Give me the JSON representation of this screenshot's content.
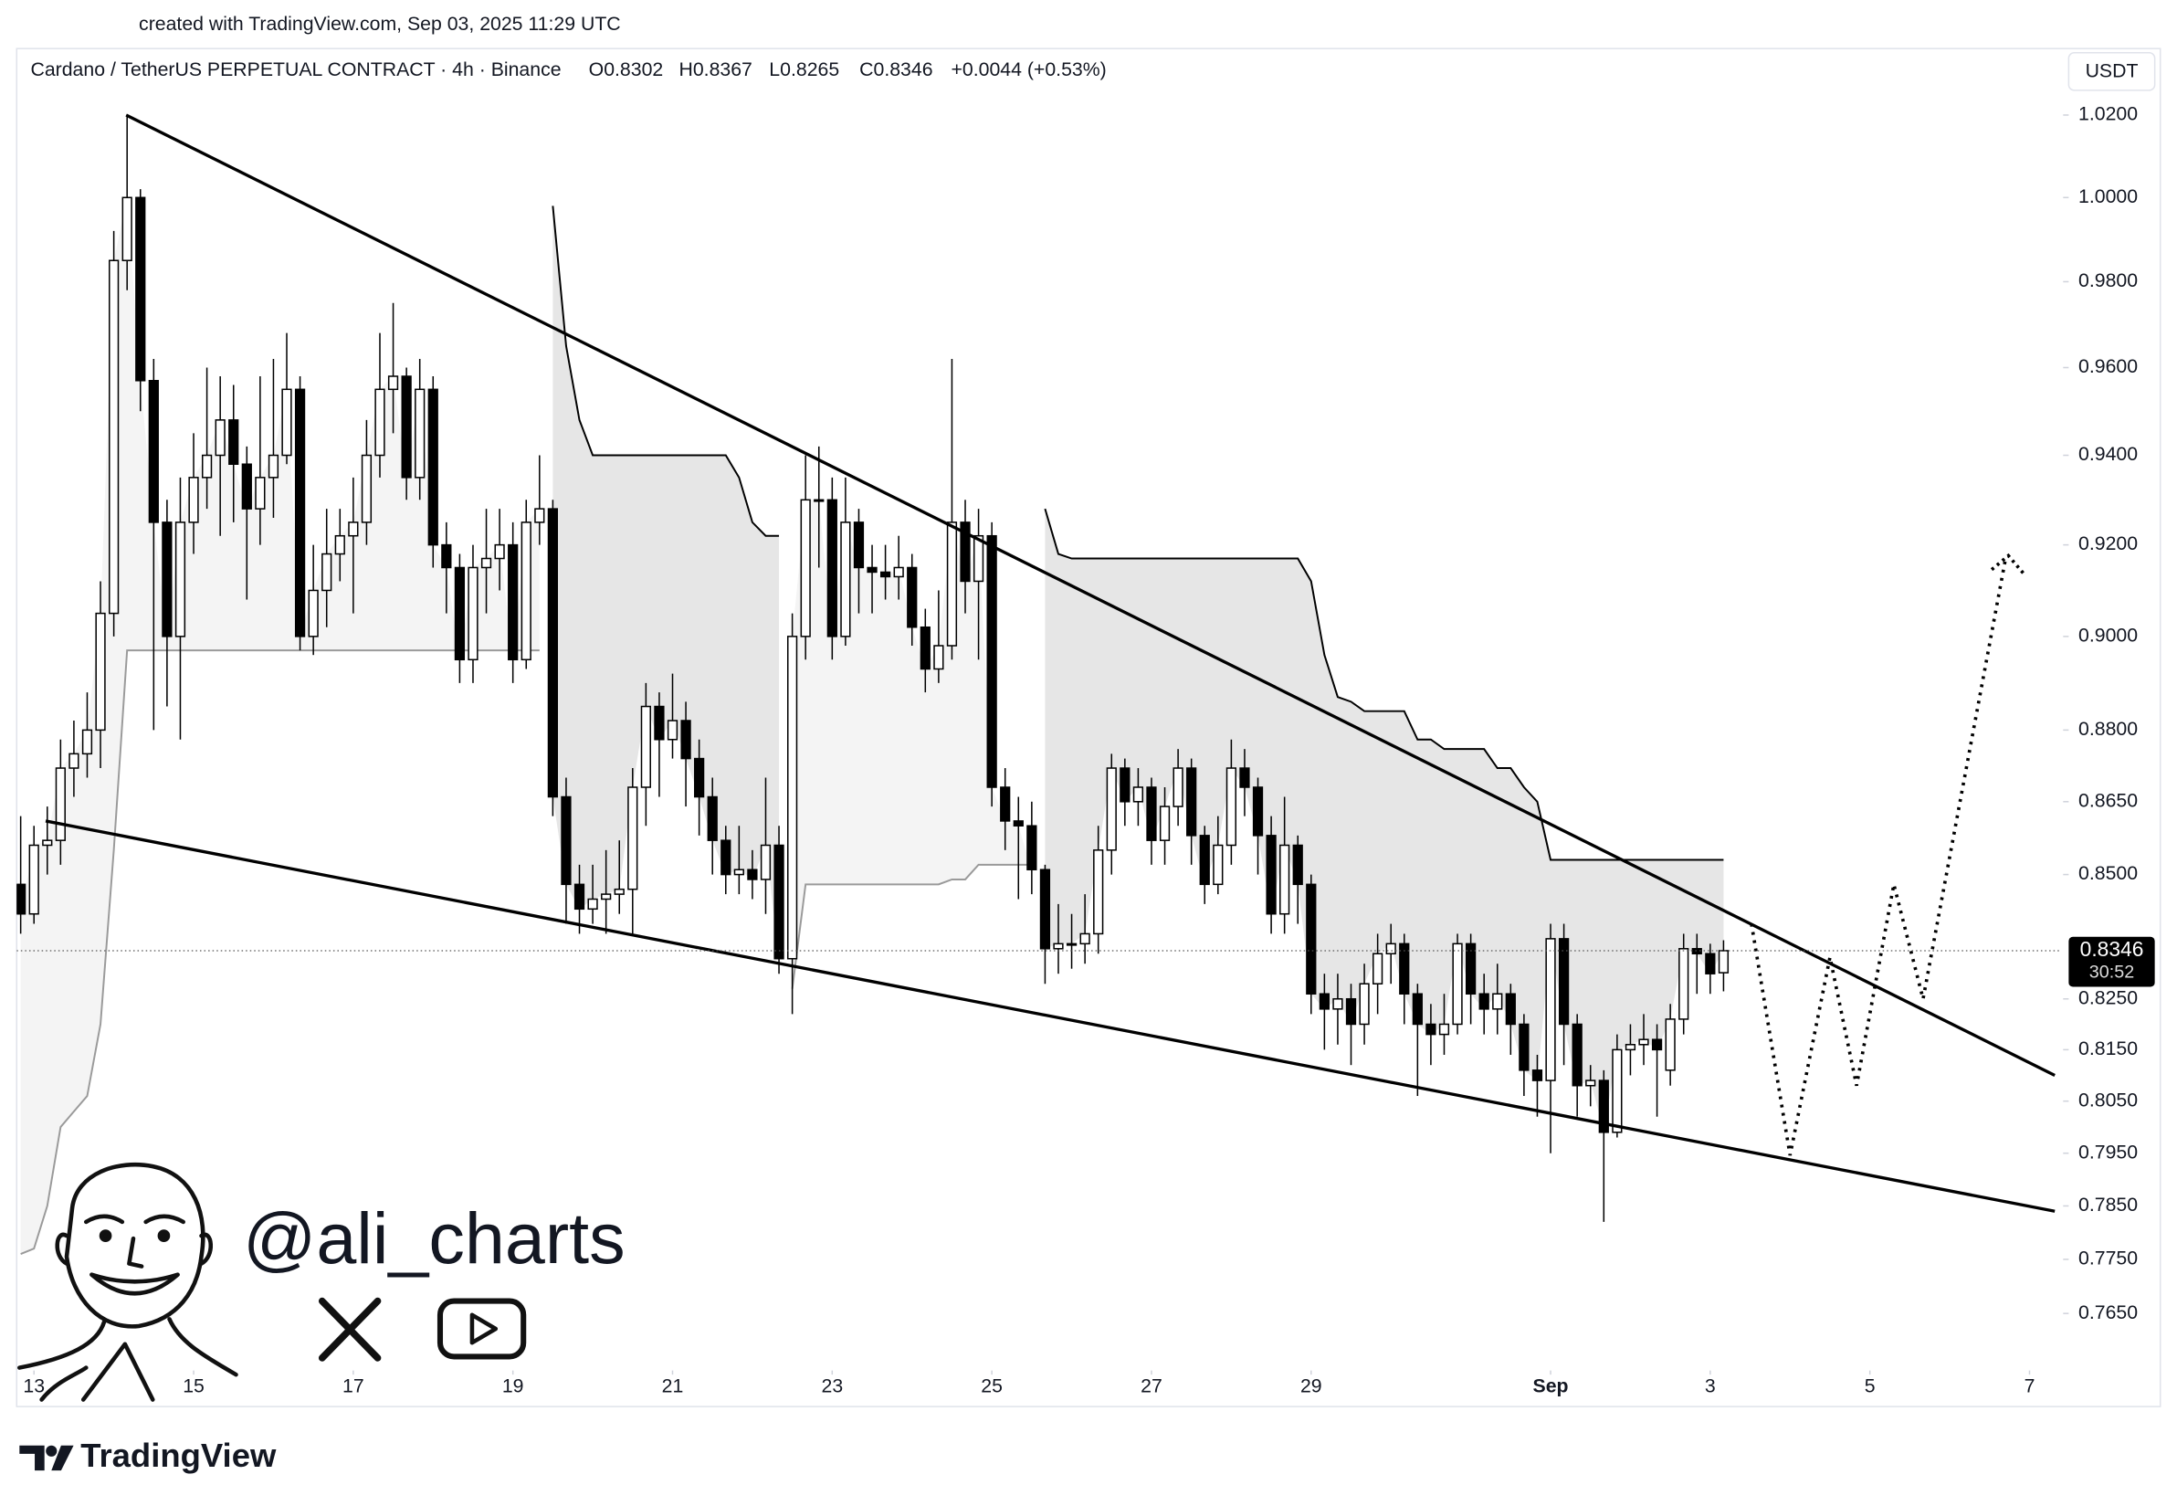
{
  "chart_data": {
    "type": "candlestick",
    "credit": "created with TradingView.com, Sep 03, 2025 11:29 UTC",
    "title": "Cardano / TetherUS PERPETUAL CONTRACT · 4h · Binance",
    "ohlc": [
      "O0.8302",
      "H0.8367",
      "L0.8265",
      "C0.8346"
    ],
    "change": "+0.0044 (+0.53%)",
    "currency": "USDT",
    "last_price": 0.8346,
    "countdown": "30:52",
    "watermark": "@ali_charts",
    "brand": "TradingView",
    "log_scale": true,
    "up_color": "#ffffff",
    "down_color": "#000000",
    "xlim": [
      -0.3,
      152.9
    ],
    "ylim": [
      0.7551,
      1.0364
    ],
    "xticks": [
      {
        "value": 1,
        "label": "13"
      },
      {
        "value": 13,
        "label": "15"
      },
      {
        "value": 25,
        "label": "17"
      },
      {
        "value": 37,
        "label": "19"
      },
      {
        "value": 49,
        "label": "21"
      },
      {
        "value": 61,
        "label": "23"
      },
      {
        "value": 73,
        "label": "25"
      },
      {
        "value": 85,
        "label": "27"
      },
      {
        "value": 97,
        "label": "29"
      },
      {
        "value": 115,
        "label": "Sep"
      },
      {
        "value": 127,
        "label": "3"
      },
      {
        "value": 139,
        "label": "5"
      },
      {
        "value": 151,
        "label": "7"
      }
    ],
    "yticks": [
      {
        "value": 1.02,
        "label": "1.0200"
      },
      {
        "value": 1.0,
        "label": "1.0000"
      },
      {
        "value": 0.98,
        "label": "0.9800"
      },
      {
        "value": 0.96,
        "label": "0.9600"
      },
      {
        "value": 0.94,
        "label": "0.9400"
      },
      {
        "value": 0.92,
        "label": "0.9200"
      },
      {
        "value": 0.9,
        "label": "0.9000"
      },
      {
        "value": 0.88,
        "label": "0.8800"
      },
      {
        "value": 0.865,
        "label": "0.8650"
      },
      {
        "value": 0.85,
        "label": "0.8500"
      },
      {
        "value": 0.825,
        "label": "0.8250"
      },
      {
        "value": 0.815,
        "label": "0.8150"
      },
      {
        "value": 0.805,
        "label": "0.8050"
      },
      {
        "value": 0.795,
        "label": "0.7950"
      },
      {
        "value": 0.785,
        "label": "0.7850"
      },
      {
        "value": 0.775,
        "label": "0.7750"
      },
      {
        "value": 0.765,
        "label": "0.7650"
      }
    ],
    "open": [
      0.848,
      0.842,
      0.856,
      0.857,
      0.872,
      0.875,
      0.88,
      0.905,
      0.985,
      1.0,
      0.957,
      0.925,
      0.9,
      0.925,
      0.935,
      0.94,
      0.948,
      0.938,
      0.928,
      0.935,
      0.94,
      0.955,
      0.9,
      0.91,
      0.918,
      0.922,
      0.925,
      0.94,
      0.955,
      0.958,
      0.935,
      0.955,
      0.92,
      0.915,
      0.895,
      0.915,
      0.917,
      0.92,
      0.895,
      0.925,
      0.928,
      0.866,
      0.848,
      0.843,
      0.845,
      0.846,
      0.847,
      0.868,
      0.885,
      0.878,
      0.882,
      0.874,
      0.866,
      0.857,
      0.85,
      0.851,
      0.849,
      0.856,
      0.833,
      0.9,
      0.93,
      0.93,
      0.9,
      0.925,
      0.915,
      0.914,
      0.913,
      0.915,
      0.902,
      0.893,
      0.898,
      0.925,
      0.912,
      0.922,
      0.868,
      0.861,
      0.86,
      0.851,
      0.835,
      0.836,
      0.836,
      0.838,
      0.855,
      0.872,
      0.865,
      0.868,
      0.857,
      0.864,
      0.872,
      0.858,
      0.848,
      0.856,
      0.872,
      0.868,
      0.858,
      0.842,
      0.856,
      0.848,
      0.826,
      0.823,
      0.825,
      0.82,
      0.828,
      0.834,
      0.836,
      0.826,
      0.82,
      0.818,
      0.82,
      0.836,
      0.826,
      0.823,
      0.826,
      0.82,
      0.811,
      0.809,
      0.837,
      0.82,
      0.808,
      0.809,
      0.799,
      0.815,
      0.816,
      0.817,
      0.811,
      0.821,
      0.835,
      0.834,
      0.8302
    ],
    "high": [
      0.862,
      0.86,
      0.864,
      0.878,
      0.882,
      0.888,
      0.912,
      0.992,
      1.02,
      1.002,
      0.962,
      0.93,
      0.935,
      0.945,
      0.96,
      0.958,
      0.956,
      0.942,
      0.958,
      0.962,
      0.968,
      0.958,
      0.92,
      0.928,
      0.928,
      0.935,
      0.948,
      0.968,
      0.975,
      0.96,
      0.962,
      0.958,
      0.925,
      0.918,
      0.92,
      0.928,
      0.928,
      0.925,
      0.93,
      0.94,
      0.93,
      0.87,
      0.852,
      0.852,
      0.855,
      0.857,
      0.872,
      0.89,
      0.888,
      0.892,
      0.886,
      0.878,
      0.87,
      0.86,
      0.86,
      0.855,
      0.87,
      0.86,
      0.905,
      0.94,
      0.942,
      0.935,
      0.935,
      0.928,
      0.92,
      0.92,
      0.922,
      0.918,
      0.906,
      0.91,
      0.962,
      0.93,
      0.928,
      0.925,
      0.872,
      0.866,
      0.865,
      0.852,
      0.844,
      0.842,
      0.846,
      0.86,
      0.875,
      0.874,
      0.872,
      0.87,
      0.868,
      0.876,
      0.874,
      0.86,
      0.862,
      0.878,
      0.876,
      0.87,
      0.862,
      0.866,
      0.858,
      0.85,
      0.83,
      0.83,
      0.828,
      0.832,
      0.838,
      0.84,
      0.838,
      0.828,
      0.824,
      0.826,
      0.838,
      0.838,
      0.83,
      0.832,
      0.828,
      0.822,
      0.814,
      0.84,
      0.84,
      0.822,
      0.812,
      0.811,
      0.818,
      0.82,
      0.822,
      0.82,
      0.824,
      0.838,
      0.838,
      0.836,
      0.8367
    ],
    "low": [
      0.838,
      0.84,
      0.85,
      0.852,
      0.866,
      0.87,
      0.872,
      0.9,
      0.978,
      0.95,
      0.88,
      0.885,
      0.878,
      0.918,
      0.928,
      0.922,
      0.925,
      0.908,
      0.92,
      0.926,
      0.938,
      0.897,
      0.896,
      0.902,
      0.912,
      0.905,
      0.92,
      0.935,
      0.945,
      0.93,
      0.93,
      0.915,
      0.905,
      0.89,
      0.89,
      0.905,
      0.91,
      0.89,
      0.893,
      0.92,
      0.862,
      0.84,
      0.838,
      0.84,
      0.838,
      0.842,
      0.838,
      0.86,
      0.866,
      0.874,
      0.864,
      0.858,
      0.85,
      0.846,
      0.846,
      0.845,
      0.842,
      0.83,
      0.822,
      0.895,
      0.915,
      0.895,
      0.898,
      0.905,
      0.905,
      0.908,
      0.908,
      0.898,
      0.888,
      0.89,
      0.895,
      0.905,
      0.895,
      0.864,
      0.855,
      0.845,
      0.846,
      0.828,
      0.83,
      0.831,
      0.832,
      0.834,
      0.85,
      0.86,
      0.86,
      0.852,
      0.852,
      0.86,
      0.852,
      0.844,
      0.846,
      0.852,
      0.862,
      0.85,
      0.838,
      0.838,
      0.84,
      0.822,
      0.815,
      0.816,
      0.812,
      0.816,
      0.822,
      0.828,
      0.82,
      0.806,
      0.812,
      0.814,
      0.818,
      0.82,
      0.818,
      0.818,
      0.814,
      0.806,
      0.802,
      0.795,
      0.812,
      0.802,
      0.804,
      0.782,
      0.798,
      0.81,
      0.812,
      0.802,
      0.808,
      0.818,
      0.826,
      0.826,
      0.8265
    ],
    "close": [
      0.842,
      0.856,
      0.857,
      0.872,
      0.875,
      0.88,
      0.905,
      0.985,
      1.0,
      0.957,
      0.925,
      0.9,
      0.925,
      0.935,
      0.94,
      0.948,
      0.938,
      0.928,
      0.935,
      0.94,
      0.955,
      0.9,
      0.91,
      0.918,
      0.922,
      0.925,
      0.94,
      0.955,
      0.958,
      0.935,
      0.955,
      0.92,
      0.915,
      0.895,
      0.915,
      0.917,
      0.92,
      0.895,
      0.925,
      0.928,
      0.866,
      0.848,
      0.843,
      0.845,
      0.846,
      0.847,
      0.868,
      0.885,
      0.878,
      0.882,
      0.874,
      0.866,
      0.857,
      0.85,
      0.851,
      0.849,
      0.856,
      0.833,
      0.9,
      0.93,
      0.93,
      0.9,
      0.925,
      0.915,
      0.914,
      0.913,
      0.915,
      0.902,
      0.893,
      0.898,
      0.925,
      0.912,
      0.922,
      0.868,
      0.861,
      0.86,
      0.851,
      0.835,
      0.836,
      0.836,
      0.838,
      0.855,
      0.872,
      0.865,
      0.868,
      0.857,
      0.864,
      0.872,
      0.858,
      0.848,
      0.856,
      0.872,
      0.868,
      0.858,
      0.842,
      0.856,
      0.848,
      0.826,
      0.823,
      0.825,
      0.82,
      0.828,
      0.834,
      0.836,
      0.826,
      0.82,
      0.818,
      0.82,
      0.836,
      0.826,
      0.823,
      0.826,
      0.82,
      0.811,
      0.809,
      0.837,
      0.82,
      0.808,
      0.809,
      0.799,
      0.815,
      0.816,
      0.817,
      0.815,
      0.821,
      0.835,
      0.834,
      0.83,
      0.8346
    ],
    "bands": [
      {
        "color": "#9a9a9a",
        "fill": "#f4f4f4",
        "values": [
          0.776,
          0.777,
          0.785,
          0.8,
          0.803,
          0.806,
          0.82,
          0.855,
          0.897,
          0.897,
          0.897,
          0.897,
          0.897,
          0.897,
          0.897,
          0.897,
          0.897,
          0.897,
          0.897,
          0.897,
          0.897,
          0.897,
          0.897,
          0.897,
          0.897,
          0.897,
          0.897,
          0.897,
          0.897,
          0.897,
          0.897,
          0.897,
          0.897,
          0.897,
          0.897,
          0.897,
          0.897,
          0.897,
          0.897,
          0.897,
          null,
          null,
          null,
          null,
          null,
          null,
          null,
          null,
          null,
          null,
          null,
          null,
          null,
          null,
          null,
          null,
          null,
          null,
          0.827,
          0.848,
          0.848,
          0.848,
          0.848,
          0.848,
          0.848,
          0.848,
          0.848,
          0.848,
          0.848,
          0.848,
          0.849,
          0.849,
          0.852,
          0.852,
          0.852,
          0.852,
          0.852,
          null,
          null,
          null,
          null,
          null,
          null,
          null,
          null,
          null,
          null,
          null,
          null,
          null,
          null,
          null,
          null,
          null,
          null,
          null,
          null,
          null,
          null,
          null,
          null,
          null,
          null,
          null,
          null,
          null,
          null,
          null,
          null,
          null,
          null,
          null,
          null,
          null,
          null,
          null,
          null,
          null,
          null,
          null,
          null,
          null,
          null,
          null,
          null,
          null,
          null,
          null,
          null,
          null,
          null,
          null,
          null,
          null
        ]
      },
      {
        "color": "#000000",
        "fill": "#e6e6e6",
        "values": [
          null,
          null,
          null,
          null,
          null,
          null,
          null,
          null,
          null,
          null,
          null,
          null,
          null,
          null,
          null,
          null,
          null,
          null,
          null,
          null,
          null,
          null,
          null,
          null,
          null,
          null,
          null,
          null,
          null,
          null,
          null,
          null,
          null,
          null,
          null,
          null,
          null,
          null,
          null,
          null,
          0.998,
          0.965,
          0.948,
          0.94,
          0.94,
          0.94,
          0.94,
          0.94,
          0.94,
          0.94,
          0.94,
          0.94,
          0.94,
          0.94,
          0.935,
          0.925,
          0.922,
          0.922,
          null,
          null,
          null,
          null,
          null,
          null,
          null,
          null,
          null,
          null,
          null,
          null,
          null,
          null,
          null,
          null,
          null,
          null,
          null,
          0.928,
          0.918,
          0.917,
          0.917,
          0.917,
          0.917,
          0.917,
          0.917,
          0.917,
          0.917,
          0.917,
          0.917,
          0.917,
          0.917,
          0.917,
          0.917,
          0.917,
          0.917,
          0.917,
          0.917,
          0.912,
          0.896,
          0.887,
          0.886,
          0.884,
          0.884,
          0.884,
          0.884,
          0.878,
          0.878,
          0.876,
          0.876,
          0.876,
          0.876,
          0.872,
          0.872,
          0.868,
          0.865,
          0.853,
          0.853,
          0.853,
          0.853,
          0.853,
          0.853,
          0.853,
          0.853,
          0.853,
          0.853,
          0.853,
          0.853,
          0.853,
          0.853
        ]
      }
    ],
    "trendlines": [
      [
        [
          7.93,
          1.02
        ],
        [
          152.9,
          0.81
        ]
      ],
      [
        [
          1.88,
          0.861
        ],
        [
          152.9,
          0.784
        ]
      ]
    ],
    "projection": [
      [
        130.1,
        0.84
      ],
      [
        133.0,
        0.7946
      ],
      [
        136.0,
        0.8333
      ],
      [
        138.0,
        0.808
      ],
      [
        140.8,
        0.848
      ],
      [
        143.0,
        0.825
      ],
      [
        149.2,
        0.917
      ]
    ]
  }
}
